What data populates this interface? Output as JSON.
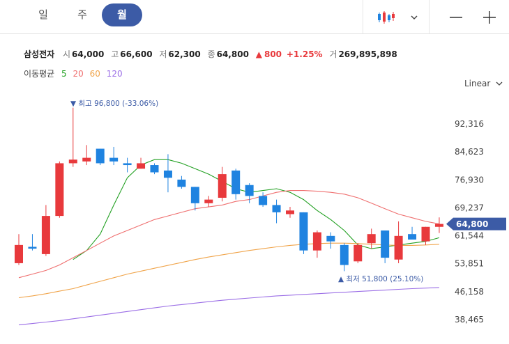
{
  "tabs": [
    {
      "label": "일",
      "active": false
    },
    {
      "label": "주",
      "active": false
    },
    {
      "label": "월",
      "active": true
    }
  ],
  "toolbar": {
    "chart_type_icon": "candlestick-icon",
    "dropdown_icon": "chevron-down-icon",
    "zoom_out_icon": "minus-icon",
    "zoom_in_icon": "plus-icon"
  },
  "stock": {
    "name": "삼성전자",
    "open_label": "시",
    "open": "64,000",
    "high_label": "고",
    "high": "66,600",
    "low_label": "저",
    "low": "62,300",
    "close_label": "종",
    "close": "64,800",
    "change": "800",
    "change_pct": "+1.25%",
    "volume_label": "거",
    "volume": "269,895,898"
  },
  "moving_average": {
    "label": "이동평균",
    "periods": [
      {
        "value": "5",
        "color": "#22a022"
      },
      {
        "value": "20",
        "color": "#ef6f6f"
      },
      {
        "value": "60",
        "color": "#f0a44a"
      },
      {
        "value": "120",
        "color": "#9b6ee6"
      }
    ]
  },
  "scale_label": "Linear",
  "colors": {
    "up": "#e8393c",
    "down": "#1f83e0",
    "accent": "#3c5ba6"
  },
  "chart_data": {
    "type": "candlestick",
    "y_ticks": [
      "92,316",
      "84,623",
      "76,930",
      "69,237",
      "61,544",
      "53,851",
      "46,158",
      "38,465"
    ],
    "y_tick_values": [
      92316,
      84623,
      76930,
      69237,
      61544,
      53851,
      46158,
      38465
    ],
    "current_price_label": "64,800",
    "current_price": 64800,
    "high_annotation": "최고 96,800 (-33.06%)",
    "low_annotation": "최저 51,800 (25.10%)",
    "candles": [
      {
        "o": 54000,
        "h": 62000,
        "l": 53500,
        "c": 59000
      },
      {
        "o": 58500,
        "h": 62000,
        "l": 57500,
        "c": 58000
      },
      {
        "o": 56500,
        "h": 70000,
        "l": 56000,
        "c": 67000
      },
      {
        "o": 67000,
        "h": 82000,
        "l": 66500,
        "c": 81500
      },
      {
        "o": 81500,
        "h": 96800,
        "l": 80500,
        "c": 82500
      },
      {
        "o": 82000,
        "h": 86500,
        "l": 81000,
        "c": 83000
      },
      {
        "o": 85500,
        "h": 85500,
        "l": 81000,
        "c": 81500
      },
      {
        "o": 83000,
        "h": 86000,
        "l": 81000,
        "c": 82000
      },
      {
        "o": 81500,
        "h": 83000,
        "l": 79000,
        "c": 81000
      },
      {
        "o": 80000,
        "h": 83000,
        "l": 80000,
        "c": 81500
      },
      {
        "o": 81000,
        "h": 81500,
        "l": 78500,
        "c": 79000
      },
      {
        "o": 79500,
        "h": 84000,
        "l": 73500,
        "c": 77500
      },
      {
        "o": 77000,
        "h": 78000,
        "l": 74500,
        "c": 75000
      },
      {
        "o": 75000,
        "h": 75000,
        "l": 68500,
        "c": 70500
      },
      {
        "o": 70500,
        "h": 72500,
        "l": 69500,
        "c": 71500
      },
      {
        "o": 72000,
        "h": 80500,
        "l": 71000,
        "c": 78500
      },
      {
        "o": 79500,
        "h": 80000,
        "l": 71500,
        "c": 73000
      },
      {
        "o": 75500,
        "h": 76000,
        "l": 70500,
        "c": 72500
      },
      {
        "o": 72500,
        "h": 73500,
        "l": 69500,
        "c": 70000
      },
      {
        "o": 70000,
        "h": 71500,
        "l": 65000,
        "c": 68000
      },
      {
        "o": 67500,
        "h": 69500,
        "l": 66500,
        "c": 68500
      },
      {
        "o": 68000,
        "h": 68000,
        "l": 56500,
        "c": 57500
      },
      {
        "o": 57500,
        "h": 63000,
        "l": 55500,
        "c": 62500
      },
      {
        "o": 61500,
        "h": 62500,
        "l": 58000,
        "c": 60000
      },
      {
        "o": 59000,
        "h": 59500,
        "l": 51800,
        "c": 53500
      },
      {
        "o": 54500,
        "h": 59500,
        "l": 54000,
        "c": 59000
      },
      {
        "o": 59500,
        "h": 63500,
        "l": 58000,
        "c": 62000
      },
      {
        "o": 63000,
        "h": 63000,
        "l": 54000,
        "c": 55500
      },
      {
        "o": 55000,
        "h": 65500,
        "l": 54000,
        "c": 61500
      },
      {
        "o": 62000,
        "h": 64000,
        "l": 60500,
        "c": 60500
      },
      {
        "o": 60000,
        "h": 64000,
        "l": 59000,
        "c": 64000
      },
      {
        "o": 64000,
        "h": 66600,
        "l": 62300,
        "c": 64800
      }
    ],
    "ma_lines": [
      {
        "name": "5",
        "color": "#22a022",
        "values": [
          null,
          null,
          null,
          null,
          55000,
          57500,
          62000,
          70000,
          77500,
          81000,
          82500,
          82500,
          81500,
          80000,
          78500,
          76500,
          74500,
          73500,
          74000,
          74500,
          73500,
          71500,
          68500,
          66000,
          63000,
          59000,
          58000,
          58500,
          59000,
          59500,
          60000,
          61000
        ]
      },
      {
        "name": "20",
        "color": "#ef6f6f",
        "values": [
          50000,
          51000,
          52000,
          53500,
          55500,
          57500,
          59500,
          61500,
          63000,
          64500,
          66000,
          67000,
          68000,
          69000,
          69500,
          70000,
          71000,
          71500,
          72500,
          73500,
          74000,
          74000,
          73800,
          73500,
          73000,
          72000,
          70500,
          69000,
          67500,
          66500,
          65500,
          64800
        ]
      },
      {
        "name": "60",
        "color": "#f0a44a",
        "values": [
          44500,
          45000,
          45600,
          46300,
          47000,
          48000,
          49000,
          50000,
          51000,
          51800,
          52600,
          53400,
          54200,
          55000,
          55700,
          56300,
          56900,
          57500,
          58000,
          58500,
          58900,
          59200,
          59400,
          59500,
          59500,
          59400,
          59200,
          59000,
          58900,
          58900,
          59000,
          59200
        ]
      },
      {
        "name": "120",
        "color": "#9b6ee6",
        "values": [
          37000,
          37400,
          37800,
          38200,
          38700,
          39200,
          39700,
          40200,
          40700,
          41200,
          41700,
          42200,
          42600,
          43000,
          43400,
          43800,
          44100,
          44400,
          44700,
          45000,
          45200,
          45400,
          45600,
          45800,
          46000,
          46200,
          46400,
          46600,
          46800,
          47000,
          47150,
          47300
        ]
      }
    ]
  }
}
